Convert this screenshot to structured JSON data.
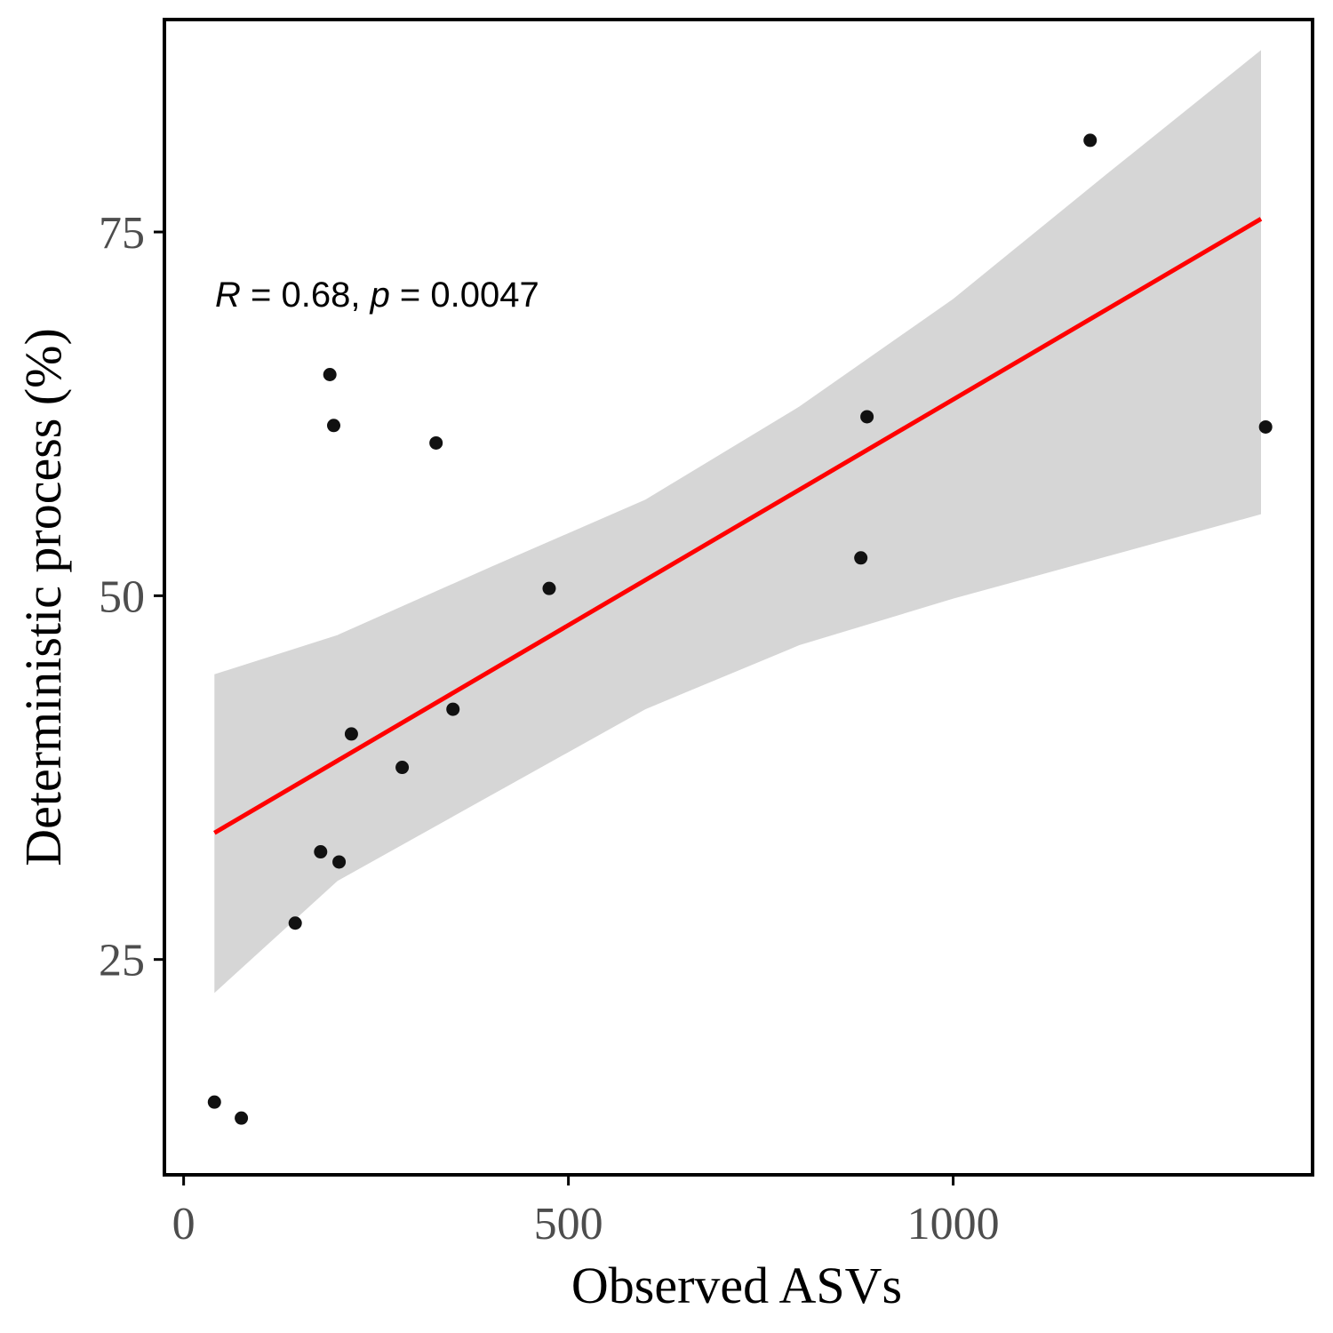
{
  "chart_data": {
    "type": "scatter",
    "xlabel": "Observed ASVs",
    "ylabel": "Deterministic process (%)",
    "xlim": [
      -25,
      1467
    ],
    "ylim": [
      10.2,
      89.6
    ],
    "xticks": [
      0,
      500,
      1000
    ],
    "xtick_labels": [
      "0",
      "500",
      "1000"
    ],
    "yticks": [
      25,
      50,
      75
    ],
    "ytick_labels": [
      "25",
      "50",
      "75"
    ],
    "grid": false,
    "points": [
      {
        "x": 40,
        "y": 15.2
      },
      {
        "x": 75,
        "y": 14.1
      },
      {
        "x": 145,
        "y": 27.5
      },
      {
        "x": 178,
        "y": 32.4
      },
      {
        "x": 202,
        "y": 31.7
      },
      {
        "x": 190,
        "y": 65.2
      },
      {
        "x": 195,
        "y": 61.7
      },
      {
        "x": 218,
        "y": 40.5
      },
      {
        "x": 284,
        "y": 38.2
      },
      {
        "x": 328,
        "y": 60.5
      },
      {
        "x": 350,
        "y": 42.2
      },
      {
        "x": 475,
        "y": 50.5
      },
      {
        "x": 880,
        "y": 52.6
      },
      {
        "x": 888,
        "y": 62.3
      },
      {
        "x": 1178,
        "y": 81.3
      },
      {
        "x": 1406,
        "y": 61.6
      }
    ],
    "fit": {
      "method": "linear",
      "color": "#ff0000",
      "line": [
        {
          "x": 40,
          "y": 33.7
        },
        {
          "x": 1400,
          "y": 75.9
        }
      ],
      "ci_band": [
        {
          "x": 40,
          "lower": 22.7,
          "upper": 44.6
        },
        {
          "x": 200,
          "lower": 30.4,
          "upper": 47.3
        },
        {
          "x": 400,
          "lower": 36.3,
          "upper": 52.0
        },
        {
          "x": 600,
          "lower": 42.2,
          "upper": 56.6
        },
        {
          "x": 800,
          "lower": 46.6,
          "upper": 63.0
        },
        {
          "x": 1000,
          "lower": 49.8,
          "upper": 70.4
        },
        {
          "x": 1200,
          "lower": 52.7,
          "upper": 79.0
        },
        {
          "x": 1400,
          "lower": 55.6,
          "upper": 87.5
        }
      ],
      "ci_color": "#d6d6d6"
    },
    "point_color": "#111111",
    "annotation": {
      "r_label": "R",
      "r_value": " = 0.68, ",
      "p_label": "p",
      "p_value": " = 0.0047"
    }
  }
}
